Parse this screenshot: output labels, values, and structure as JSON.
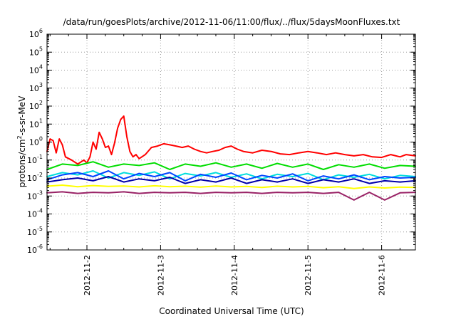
{
  "chart_data": {
    "type": "line",
    "title": "/data/run/goesPlots/archive/2012-11-06/11:00/flux/../flux/5daysMoonFluxes.txt",
    "xlabel": "Coordinated Universal Time (UTC)",
    "ylabel": {
      "prefix": "protons/cm",
      "superscript": "2",
      "suffix": "-s-sr-MeV"
    },
    "y_scale": "log",
    "ylim": [
      1e-06,
      1000000.0
    ],
    "y_ticks": [
      {
        "value": 1e-06,
        "base": "10",
        "exp": "-6"
      },
      {
        "value": 1e-05,
        "base": "10",
        "exp": "-5"
      },
      {
        "value": 0.0001,
        "base": "10",
        "exp": "-4"
      },
      {
        "value": 0.001,
        "base": "10",
        "exp": "-3"
      },
      {
        "value": 0.01,
        "base": "10",
        "exp": "-2"
      },
      {
        "value": 0.1,
        "base": "10",
        "exp": "-1"
      },
      {
        "value": 1.0,
        "base": "10",
        "exp": "0"
      },
      {
        "value": 10.0,
        "base": "10",
        "exp": "1"
      },
      {
        "value": 100.0,
        "base": "10",
        "exp": "2"
      },
      {
        "value": 1000.0,
        "base": "10",
        "exp": "3"
      },
      {
        "value": 10000.0,
        "base": "10",
        "exp": "4"
      },
      {
        "value": 100000.0,
        "base": "10",
        "exp": "5"
      },
      {
        "value": 1000000.0,
        "base": "10",
        "exp": "6"
      }
    ],
    "x_scale": "time",
    "xlim": [
      "2012-11-01T11:00",
      "2012-11-06T11:00"
    ],
    "x_ticks": [
      {
        "value": "2012-11-02T00:00",
        "label": "2012-11-2"
      },
      {
        "value": "2012-11-03T00:00",
        "label": "2012-11-3"
      },
      {
        "value": "2012-11-04T00:00",
        "label": "2012-11-4"
      },
      {
        "value": "2012-11-05T00:00",
        "label": "2012-11-5"
      },
      {
        "value": "2012-11-06T00:00",
        "label": "2012-11-6"
      }
    ],
    "grid": true,
    "legend": "none",
    "series": [
      {
        "color": "#ff0000",
        "x": [
          "2012-11-01T11:00",
          "2012-11-01T12:00",
          "2012-11-01T13:00",
          "2012-11-01T14:00",
          "2012-11-01T15:00",
          "2012-11-01T16:00",
          "2012-11-01T17:00",
          "2012-11-01T19:00",
          "2012-11-01T21:00",
          "2012-11-01T23:00",
          "2012-11-02T00:00",
          "2012-11-02T01:00",
          "2012-11-02T02:00",
          "2012-11-02T03:00",
          "2012-11-02T04:00",
          "2012-11-02T05:00",
          "2012-11-02T06:00",
          "2012-11-02T07:00",
          "2012-11-02T08:00",
          "2012-11-02T09:00",
          "2012-11-02T10:00",
          "2012-11-02T11:00",
          "2012-11-02T12:00",
          "2012-11-02T13:00",
          "2012-11-02T14:00",
          "2012-11-02T15:00",
          "2012-11-02T16:00",
          "2012-11-02T17:00",
          "2012-11-02T19:00",
          "2012-11-02T21:00",
          "2012-11-02T23:00",
          "2012-11-03T01:00",
          "2012-11-03T03:00",
          "2012-11-03T05:00",
          "2012-11-03T07:00",
          "2012-11-03T09:00",
          "2012-11-03T11:00",
          "2012-11-03T13:00",
          "2012-11-03T15:00",
          "2012-11-03T17:00",
          "2012-11-03T19:00",
          "2012-11-03T21:00",
          "2012-11-03T23:00",
          "2012-11-04T01:00",
          "2012-11-04T03:00",
          "2012-11-04T06:00",
          "2012-11-04T09:00",
          "2012-11-04T12:00",
          "2012-11-04T15:00",
          "2012-11-04T18:00",
          "2012-11-04T21:00",
          "2012-11-05T00:00",
          "2012-11-05T03:00",
          "2012-11-05T06:00",
          "2012-11-05T09:00",
          "2012-11-05T12:00",
          "2012-11-05T15:00",
          "2012-11-05T18:00",
          "2012-11-05T21:00",
          "2012-11-06T00:00",
          "2012-11-06T03:00",
          "2012-11-06T06:00",
          "2012-11-06T08:00",
          "2012-11-06T11:00"
        ],
        "y": [
          0.3,
          1.5,
          1.2,
          0.25,
          1.5,
          0.7,
          0.15,
          0.1,
          0.06,
          0.1,
          0.07,
          0.15,
          1.0,
          0.4,
          3.5,
          1.5,
          0.5,
          0.6,
          0.2,
          0.9,
          6.0,
          18.0,
          28.0,
          2.0,
          0.3,
          0.15,
          0.2,
          0.12,
          0.2,
          0.5,
          0.6,
          0.8,
          0.7,
          0.6,
          0.5,
          0.6,
          0.4,
          0.3,
          0.25,
          0.3,
          0.35,
          0.5,
          0.6,
          0.4,
          0.3,
          0.25,
          0.35,
          0.3,
          0.22,
          0.2,
          0.25,
          0.3,
          0.25,
          0.2,
          0.25,
          0.2,
          0.17,
          0.2,
          0.15,
          0.14,
          0.2,
          0.15,
          0.2,
          0.17
        ]
      },
      {
        "color": "#00dd00",
        "x": [
          "2012-11-01T11:00",
          "2012-11-01T16:00",
          "2012-11-01T21:00",
          "2012-11-02T02:00",
          "2012-11-02T07:00",
          "2012-11-02T12:00",
          "2012-11-02T17:00",
          "2012-11-02T22:00",
          "2012-11-03T03:00",
          "2012-11-03T08:00",
          "2012-11-03T13:00",
          "2012-11-03T18:00",
          "2012-11-03T23:00",
          "2012-11-04T04:00",
          "2012-11-04T09:00",
          "2012-11-04T14:00",
          "2012-11-04T19:00",
          "2012-11-05T00:00",
          "2012-11-05T05:00",
          "2012-11-05T10:00",
          "2012-11-05T15:00",
          "2012-11-05T20:00",
          "2012-11-06T01:00",
          "2012-11-06T06:00",
          "2012-11-06T11:00"
        ],
        "y": [
          0.03,
          0.06,
          0.05,
          0.08,
          0.04,
          0.06,
          0.05,
          0.07,
          0.03,
          0.06,
          0.045,
          0.07,
          0.04,
          0.06,
          0.035,
          0.065,
          0.04,
          0.06,
          0.03,
          0.055,
          0.04,
          0.06,
          0.035,
          0.05,
          0.045
        ]
      },
      {
        "color": "#00dddd",
        "x": [
          "2012-11-01T11:00",
          "2012-11-01T16:00",
          "2012-11-01T21:00",
          "2012-11-02T02:00",
          "2012-11-02T07:00",
          "2012-11-02T12:00",
          "2012-11-02T17:00",
          "2012-11-02T22:00",
          "2012-11-03T03:00",
          "2012-11-03T08:00",
          "2012-11-03T13:00",
          "2012-11-03T18:00",
          "2012-11-03T23:00",
          "2012-11-04T04:00",
          "2012-11-04T09:00",
          "2012-11-04T14:00",
          "2012-11-04T19:00",
          "2012-11-05T00:00",
          "2012-11-05T05:00",
          "2012-11-05T10:00",
          "2012-11-05T15:00",
          "2012-11-05T20:00",
          "2012-11-06T01:00",
          "2012-11-06T06:00",
          "2012-11-06T11:00"
        ],
        "y": [
          0.012,
          0.02,
          0.015,
          0.025,
          0.01,
          0.02,
          0.014,
          0.022,
          0.009,
          0.018,
          0.013,
          0.02,
          0.011,
          0.017,
          0.009,
          0.016,
          0.012,
          0.018,
          0.008,
          0.015,
          0.011,
          0.016,
          0.009,
          0.014,
          0.012
        ]
      },
      {
        "color": "#0044ff",
        "x": [
          "2012-11-01T11:00",
          "2012-11-01T16:00",
          "2012-11-01T21:00",
          "2012-11-02T02:00",
          "2012-11-02T07:00",
          "2012-11-02T12:00",
          "2012-11-02T17:00",
          "2012-11-02T22:00",
          "2012-11-03T03:00",
          "2012-11-03T08:00",
          "2012-11-03T13:00",
          "2012-11-03T18:00",
          "2012-11-03T23:00",
          "2012-11-04T04:00",
          "2012-11-04T09:00",
          "2012-11-04T14:00",
          "2012-11-04T19:00",
          "2012-11-05T00:00",
          "2012-11-05T05:00",
          "2012-11-05T10:00",
          "2012-11-05T15:00",
          "2012-11-05T20:00",
          "2012-11-06T01:00",
          "2012-11-06T06:00",
          "2012-11-06T11:00"
        ],
        "y": [
          0.008,
          0.015,
          0.02,
          0.012,
          0.025,
          0.009,
          0.018,
          0.012,
          0.02,
          0.007,
          0.016,
          0.011,
          0.019,
          0.008,
          0.014,
          0.01,
          0.017,
          0.007,
          0.013,
          0.009,
          0.015,
          0.008,
          0.012,
          0.01,
          0.011
        ]
      },
      {
        "color": "#0000aa",
        "x": [
          "2012-11-01T11:00",
          "2012-11-01T16:00",
          "2012-11-01T21:00",
          "2012-11-02T02:00",
          "2012-11-02T07:00",
          "2012-11-02T12:00",
          "2012-11-02T17:00",
          "2012-11-02T22:00",
          "2012-11-03T03:00",
          "2012-11-03T08:00",
          "2012-11-03T13:00",
          "2012-11-03T18:00",
          "2012-11-03T23:00",
          "2012-11-04T04:00",
          "2012-11-04T09:00",
          "2012-11-04T14:00",
          "2012-11-04T19:00",
          "2012-11-05T00:00",
          "2012-11-05T05:00",
          "2012-11-05T10:00",
          "2012-11-05T15:00",
          "2012-11-05T20:00",
          "2012-11-06T01:00",
          "2012-11-06T06:00",
          "2012-11-06T11:00"
        ],
        "y": [
          0.006,
          0.008,
          0.01,
          0.007,
          0.012,
          0.006,
          0.009,
          0.007,
          0.011,
          0.005,
          0.008,
          0.006,
          0.01,
          0.005,
          0.008,
          0.006,
          0.009,
          0.005,
          0.008,
          0.006,
          0.009,
          0.005,
          0.007,
          0.006,
          0.007
        ]
      },
      {
        "color": "#ffff00",
        "x": [
          "2012-11-01T11:00",
          "2012-11-01T16:00",
          "2012-11-01T21:00",
          "2012-11-02T02:00",
          "2012-11-02T07:00",
          "2012-11-02T12:00",
          "2012-11-02T17:00",
          "2012-11-02T22:00",
          "2012-11-03T03:00",
          "2012-11-03T08:00",
          "2012-11-03T13:00",
          "2012-11-03T18:00",
          "2012-11-03T23:00",
          "2012-11-04T04:00",
          "2012-11-04T09:00",
          "2012-11-04T14:00",
          "2012-11-04T19:00",
          "2012-11-05T00:00",
          "2012-11-05T05:00",
          "2012-11-05T10:00",
          "2012-11-05T15:00",
          "2012-11-05T20:00",
          "2012-11-06T01:00",
          "2012-11-06T06:00",
          "2012-11-06T11:00"
        ],
        "y": [
          0.0035,
          0.004,
          0.0033,
          0.0038,
          0.0034,
          0.0036,
          0.0032,
          0.0037,
          0.0033,
          0.0035,
          0.0031,
          0.0036,
          0.0032,
          0.0034,
          0.003,
          0.0035,
          0.0032,
          0.0034,
          0.0029,
          0.0033,
          0.0026,
          0.0032,
          0.0028,
          0.0031,
          0.003
        ]
      },
      {
        "color": "#992266",
        "x": [
          "2012-11-01T11:00",
          "2012-11-01T16:00",
          "2012-11-01T21:00",
          "2012-11-02T02:00",
          "2012-11-02T07:00",
          "2012-11-02T12:00",
          "2012-11-02T17:00",
          "2012-11-02T22:00",
          "2012-11-03T03:00",
          "2012-11-03T08:00",
          "2012-11-03T13:00",
          "2012-11-03T18:00",
          "2012-11-03T23:00",
          "2012-11-04T04:00",
          "2012-11-04T09:00",
          "2012-11-04T14:00",
          "2012-11-04T19:00",
          "2012-11-05T00:00",
          "2012-11-05T05:00",
          "2012-11-05T10:00",
          "2012-11-05T15:00",
          "2012-11-05T20:00",
          "2012-11-06T01:00",
          "2012-11-06T06:00",
          "2012-11-06T11:00"
        ],
        "y": [
          0.0015,
          0.0017,
          0.0014,
          0.0016,
          0.0015,
          0.0017,
          0.0014,
          0.0016,
          0.0015,
          0.0016,
          0.0014,
          0.0016,
          0.0015,
          0.0016,
          0.0014,
          0.0016,
          0.0015,
          0.0016,
          0.0014,
          0.0016,
          0.0006,
          0.0016,
          0.0006,
          0.0015,
          0.0016
        ]
      }
    ]
  }
}
